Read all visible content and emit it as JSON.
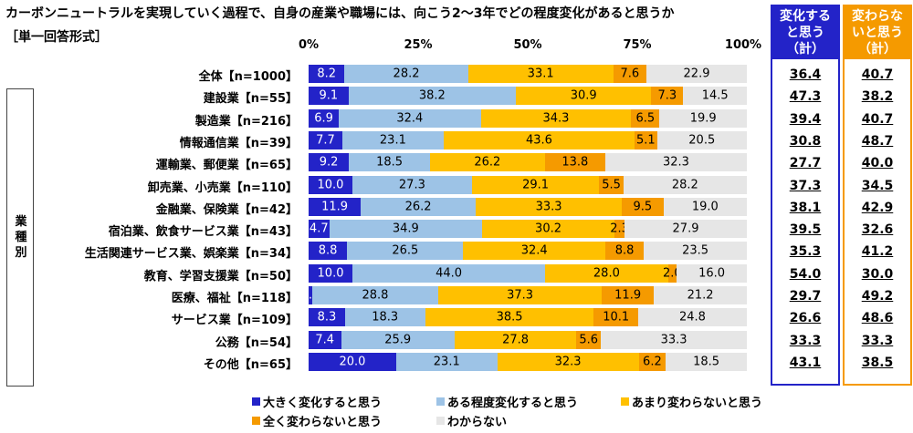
{
  "title": "カーボンニュートラルを実現していく過程で、自身の産業や職場には、向こう2〜3年でどの程度変化があると思うか",
  "subtitle": "［単一回答形式］",
  "group_label": "業種別",
  "summary_headers": [
    "変化すると思う（計）",
    "変わらないと思う（計）"
  ],
  "colors": [
    "#2323c8",
    "#9dc3e6",
    "#ffc000",
    "#f59a00",
    "#e6e6e6"
  ],
  "summary_colors": [
    "#2323c8",
    "#f59a00"
  ],
  "chart_data": {
    "type": "bar",
    "orientation": "horizontal",
    "stacked": true,
    "title": "カーボンニュートラルを実現していく過程で、自身の産業や職場には、向こう2〜3年でどの程度変化があると思うか",
    "xlim": [
      0,
      100
    ],
    "ticks": [
      "0%",
      "25%",
      "50%",
      "75%",
      "100%"
    ],
    "legend_position": "bottom",
    "categories": [
      "全体【n=1000】",
      "建設業【n=55】",
      "製造業【n=216】",
      "情報通信業【n=39】",
      "運輸業、郵便業【n=65】",
      "卸売業、小売業【n=110】",
      "金融業、保険業【n=42】",
      "宿泊業、飲食サービス業【n=43】",
      "生活関連サービス業、娯楽業【n=34】",
      "教育、学習支援業【n=50】",
      "医療、福祉【n=118】",
      "サービス業【n=109】",
      "公務【n=54】",
      "その他【n=65】"
    ],
    "series": [
      {
        "name": "大きく変化すると思う",
        "values": [
          "8.2",
          "9.1",
          "6.9",
          "7.7",
          "9.2",
          "10.0",
          "11.9",
          "4.7",
          "8.8",
          "10.0",
          "0.8",
          "8.3",
          "7.4",
          "20.0"
        ]
      },
      {
        "name": "ある程度変化すると思う",
        "values": [
          "28.2",
          "38.2",
          "32.4",
          "23.1",
          "18.5",
          "27.3",
          "26.2",
          "34.9",
          "26.5",
          "44.0",
          "28.8",
          "18.3",
          "25.9",
          "23.1"
        ]
      },
      {
        "name": "あまり変わらないと思う",
        "values": [
          "33.1",
          "30.9",
          "34.3",
          "43.6",
          "26.2",
          "29.1",
          "33.3",
          "30.2",
          "32.4",
          "28.0",
          "37.3",
          "38.5",
          "27.8",
          "32.3"
        ]
      },
      {
        "name": "全く変わらないと思う",
        "values": [
          "7.6",
          "7.3",
          "6.5",
          "5.1",
          "13.8",
          "5.5",
          "9.5",
          "2.3",
          "8.8",
          "2.0",
          "11.9",
          "10.1",
          "5.6",
          "6.2"
        ]
      },
      {
        "name": "わからない",
        "values": [
          "22.9",
          "14.5",
          "19.9",
          "20.5",
          "32.3",
          "28.2",
          "19.0",
          "27.9",
          "23.5",
          "16.0",
          "21.2",
          "24.8",
          "33.3",
          "18.5"
        ]
      }
    ],
    "totals_change": [
      "36.4",
      "47.3",
      "39.4",
      "30.8",
      "27.7",
      "37.3",
      "38.1",
      "39.5",
      "35.3",
      "54.0",
      "29.7",
      "26.6",
      "33.3",
      "43.1"
    ],
    "totals_nochange": [
      "40.7",
      "38.2",
      "40.7",
      "48.7",
      "40.0",
      "34.5",
      "42.9",
      "32.6",
      "41.2",
      "30.0",
      "49.2",
      "48.6",
      "33.3",
      "38.5"
    ]
  }
}
